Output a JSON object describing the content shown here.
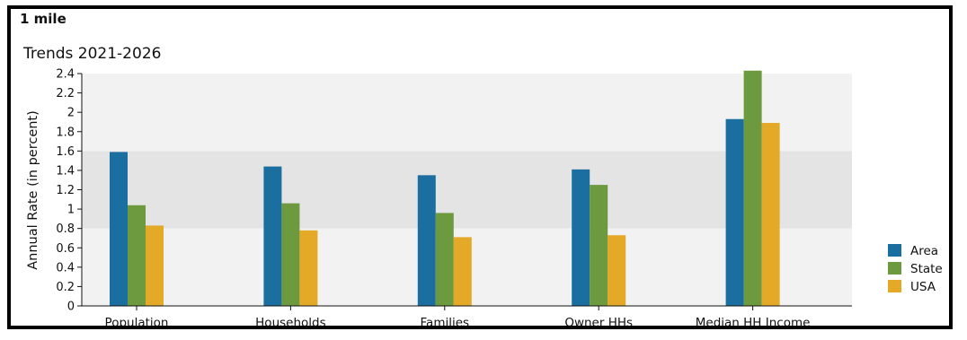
{
  "header": {
    "region": "1 mile"
  },
  "chart_data": {
    "type": "bar",
    "title": "Trends 2021-2026",
    "xlabel": "",
    "ylabel": "Annual Rate (in percent)",
    "ylim": [
      0,
      2.4
    ],
    "yticks": [
      "0",
      "0.2",
      "0.4",
      "0.6",
      "0.8",
      "1",
      "1.2",
      "1.4",
      "1.6",
      "1.8",
      "2",
      "2.2",
      "2.4"
    ],
    "categories": [
      "Population",
      "Households",
      "Families",
      "Owner HHs",
      "Median HH Income"
    ],
    "series": [
      {
        "name": "Area",
        "color": "#1b6fa0",
        "values": [
          1.59,
          1.44,
          1.35,
          1.41,
          1.93
        ]
      },
      {
        "name": "State",
        "color": "#6d9a3e",
        "values": [
          1.04,
          1.06,
          0.96,
          1.25,
          2.43
        ]
      },
      {
        "name": "USA",
        "color": "#e3a927",
        "values": [
          0.83,
          0.78,
          0.71,
          0.73,
          1.89
        ]
      }
    ],
    "bands": [
      {
        "from": 0,
        "to": 0.8,
        "color": "#f2f2f2"
      },
      {
        "from": 0.8,
        "to": 1.6,
        "color": "#e4e4e4"
      },
      {
        "from": 1.6,
        "to": 2.4,
        "color": "#f2f2f2"
      }
    ],
    "grid": false,
    "legend_position": "bottom-right"
  }
}
